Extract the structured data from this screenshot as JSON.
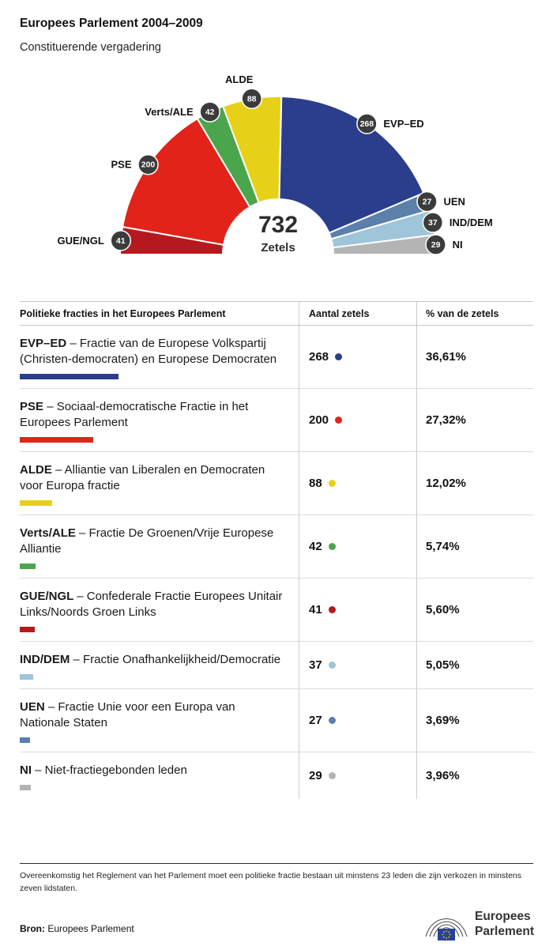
{
  "header": {
    "title": "Europees Parlement 2004–2009",
    "subtitle": "Constituerende vergadering"
  },
  "chart_data": {
    "type": "pie",
    "variant": "hemicycle-half-donut",
    "title": "Europees Parlement 2004–2009",
    "center_total": "732",
    "center_unit": "Zetels",
    "total_seats": 732,
    "order": "left-to-right",
    "series": [
      {
        "key": "gue",
        "name": "GUE/NGL",
        "seats": 41
      },
      {
        "key": "pse",
        "name": "PSE",
        "seats": 200
      },
      {
        "key": "verts",
        "name": "Verts/ALE",
        "seats": 42
      },
      {
        "key": "alde",
        "name": "ALDE",
        "seats": 88
      },
      {
        "key": "evp",
        "name": "EVP–ED",
        "seats": 268
      },
      {
        "key": "uen",
        "name": "UEN",
        "seats": 27
      },
      {
        "key": "ind",
        "name": "IND/DEM",
        "seats": 37
      },
      {
        "key": "ni",
        "name": "NI",
        "seats": 29
      }
    ],
    "colors": {
      "evp": "#2b3e8c",
      "pse": "#e2231a",
      "alde": "#e7d118",
      "verts": "#4aa54c",
      "gue": "#b5191f",
      "ind": "#9ec5d8",
      "uen": "#5b80aa",
      "ni": "#b4b4b4"
    },
    "badge_color": "#3b3b3b"
  },
  "table": {
    "headers": {
      "col1": "Politieke fracties in het Europees Parlement",
      "col2": "Aantal zetels",
      "col3": "% van de zetels"
    },
    "rows": [
      {
        "key": "evp",
        "abbr": "EVP–ED",
        "desc": "– Fractie van de Europese Volkspartij (Christen-democraten) en Europese Democraten",
        "seats": 268,
        "pct": "36,61%"
      },
      {
        "key": "pse",
        "abbr": "PSE",
        "desc": "– Sociaal-democratische Fractie in het Europees Parlement",
        "seats": 200,
        "pct": "27,32%"
      },
      {
        "key": "alde",
        "abbr": "ALDE",
        "desc": "– Alliantie van Liberalen en Democraten voor Europa fractie",
        "seats": 88,
        "pct": "12,02%"
      },
      {
        "key": "verts",
        "abbr": "Verts/ALE",
        "desc": "– Fractie De Groenen/Vrije Europese Alliantie",
        "seats": 42,
        "pct": "5,74%"
      },
      {
        "key": "gue",
        "abbr": "GUE/NGL",
        "desc": "– Confederale Fractie Europees Unitair Links/Noords Groen Links",
        "seats": 41,
        "pct": "5,60%"
      },
      {
        "key": "ind",
        "abbr": "IND/DEM",
        "desc": "– Fractie Onafhankelijkheid/Democratie",
        "seats": 37,
        "pct": "5,05%"
      },
      {
        "key": "uen",
        "abbr": "UEN",
        "desc": "– Fractie Unie voor een Europa van Nationale Staten",
        "seats": 27,
        "pct": "3,69%"
      },
      {
        "key": "ni",
        "abbr": "NI",
        "desc": "– Niet-fractiegebonden leden",
        "seats": 29,
        "pct": "3,96%"
      }
    ]
  },
  "footer": {
    "note": "Overeenkomstig het Reglement van het Parlement moet een politieke fractie bestaan uit minstens 23 leden die zijn verkozen in minstens zeven lidstaten.",
    "source_label": "Bron:",
    "source_value": "Europees Parlement",
    "logo": {
      "line1": "Europees",
      "line2": "Parlement"
    }
  }
}
